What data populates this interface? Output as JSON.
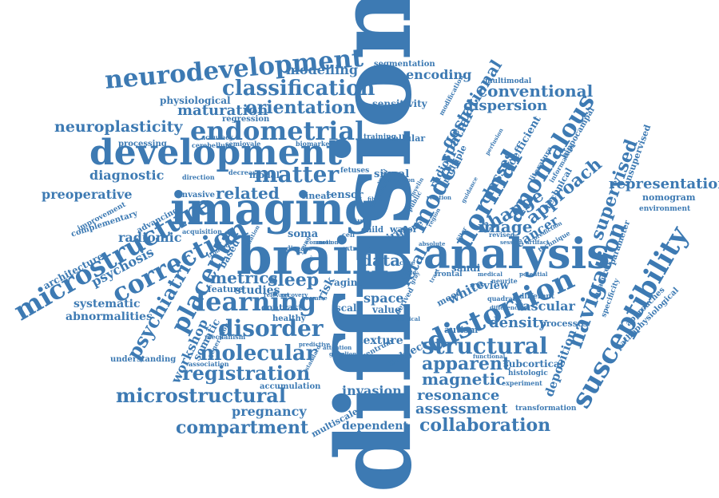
{
  "color": "#3d7ab3",
  "words": {
    "diffusion": "diffusion",
    "brain": "brain",
    "imaging": "imaging",
    "analysis": "analysis",
    "development": "development",
    "neurodevelopment": "neurodevelopment",
    "susceptibility": "susceptibility",
    "navigation": "navigation",
    "distortion": "distortion",
    "microstructure": "microstructure",
    "endometrial": "endometrial",
    "correction": "correction",
    "classification": "classification",
    "orientation": "orientation",
    "learning": "learning",
    "structural": "structural",
    "registration": "registration",
    "microstructural": "microstructural",
    "molecular": "molecular",
    "disorder": "disorder",
    "collaboration": "collaboration",
    "compartment": "compartment",
    "matter": "matter",
    "normal": "normal",
    "model": "model",
    "anomalous": "anomalous",
    "approach": "approach",
    "supervised": "supervised",
    "neuroplasticity": "neuroplasticity",
    "placenta": "placenta",
    "psychiatric": "psychiatric",
    "apparent": "apparent",
    "magnetic": "magnetic",
    "resonance": "resonance",
    "assessment": "assessment",
    "pregnancy": "pregnancy",
    "sleep": "sleep",
    "metrics": "metrics",
    "related": "related",
    "modelling": "modelling",
    "maturation": "maturation",
    "conventional": "conventional",
    "dispersion": "dispersion",
    "representation": "representation",
    "deposition": "deposition",
    "gestational": "gestational",
    "change": "change",
    "image": "image",
    "data": "data",
    "space": "space",
    "density": "density",
    "vascular": "vascular",
    "white": "white",
    "fetal": "fetal",
    "spatial": "spatial",
    "classes": "classes",
    "cancer": "cancer",
    "radiomic": "radiomic",
    "diagnostic": "diagnostic",
    "preoperative": "preoperative",
    "psychosis": "psychosis",
    "architecture": "architecture",
    "systematic": "systematic",
    "abnormalities": "abnormalities",
    "workshop": "workshop",
    "invasion": "invasion",
    "dependent": "dependent",
    "encoding": "encoding",
    "segmentation": "segmentation",
    "sensitivity": "sensitivity",
    "studies": "studies",
    "feature": "feature",
    "texture": "texture",
    "subject": "subject",
    "somatic": "somatic",
    "understanding": "understanding",
    "accumulation": "accumulation",
    "multiscale": "multiscale",
    "subcortical": "subcortical",
    "histologic": "histologic",
    "experiment": "experiment",
    "transformation": "transformation",
    "autism": "autism",
    "review": "review",
    "processes": "processes",
    "different": "different",
    "approaches": "approaches",
    "pathophysiological": "pathophysiological",
    "specificity": "specificity",
    "measured": "measured",
    "parameter": "parameter",
    "nomogram": "nomogram",
    "environment": "environment",
    "unsupervised": "unsupervised",
    "coefficient": "coefficient",
    "literature": "literature",
    "hippocampal": "hippocampal",
    "multimodal": "multimodal",
    "technical": "technical",
    "signal": "signal",
    "tensor": "tensor",
    "linear": "linear",
    "modal": "modal",
    "soma": "soma",
    "risk": "risk",
    "aging": "aging",
    "scale": "scale",
    "value": "value",
    "water": "water",
    "child": "child",
    "tissue": "tissue",
    "iron": "iron",
    "mood": "mood",
    "sandi": "sandi",
    "neurite": "neurite",
    "frontal": "frontal",
    "radio": "radio",
    "multiple": "multiple",
    "cellular": "cellular",
    "training": "training",
    "regression": "regression",
    "physiological": "physiological",
    "accuracy": "accuracy",
    "cerebellum": "cerebellum",
    "semiovale": "semiovale",
    "processing": "processing",
    "direction": "direction",
    "invasive": "invasive",
    "complementary": "complementary",
    "improvement": "improvement",
    "advancing": "advancing",
    "acquisition": "acquisition",
    "based": "based",
    "contrast": "contrast",
    "healthy": "healthy",
    "mechanism": "mechanism",
    "association": "association",
    "generation": "generation",
    "centrum": "centrum",
    "ganglion": "ganglion",
    "predictive": "predictive",
    "biomarker": "biomarker",
    "decrease": "decrease",
    "fetuses": "fetuses",
    "increase": "increase",
    "modification": "modification",
    "perfusion": "perfusion",
    "information": "information",
    "revised": "revised",
    "session": "session",
    "artifact": "artifact",
    "quadratic": "quadratic",
    "difference": "difference",
    "potential": "potential",
    "technique": "technique",
    "prediction": "prediction",
    "functional": "functional",
    "derived": "derived",
    "cortical": "cortical",
    "disease": "disease",
    "common": "common",
    "study": "study",
    "cell": "cell",
    "extra": "extra",
    "public": "public",
    "region": "region",
    "filter": "filter",
    "medical": "medical",
    "standard": "standard",
    "promise": "promise",
    "attention": "attention",
    "recovery": "recovery",
    "myelin": "myelin",
    "revision": "revision",
    "relation": "relation",
    "guidance": "guidance",
    "absolute": "absolute",
    "fibre": "fibre",
    "voxel": "voxel",
    "case": "case",
    "field": "field",
    "type": "type",
    "young": "young",
    "early": "early",
    "motion": "motion",
    "trimester": "trimester",
    "estimation": "estimation",
    "relevant": "relevant",
    "gray": "gray",
    "tract": "tract"
  }
}
